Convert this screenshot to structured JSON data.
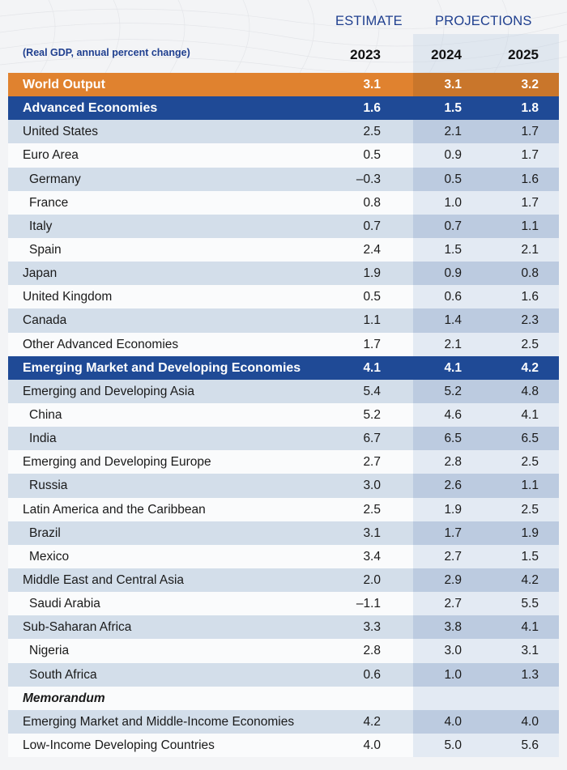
{
  "header": {
    "estimate_label": "ESTIMATE",
    "projections_label": "PROJECTIONS",
    "subtitle": "(Real GDP, annual percent change)",
    "years": [
      "2023",
      "2024",
      "2025"
    ]
  },
  "colors": {
    "world": "#e0822f",
    "group": "#1f4a96",
    "shade": "#d3deea",
    "text_accent": "#1f3f8f"
  },
  "rows": [
    {
      "label": "World Output",
      "values": [
        "3.1",
        "3.1",
        "3.2"
      ],
      "type": "world"
    },
    {
      "label": "Advanced Economies",
      "values": [
        "1.6",
        "1.5",
        "1.8"
      ],
      "type": "group"
    },
    {
      "label": "United States",
      "values": [
        "2.5",
        "2.1",
        "1.7"
      ],
      "type": "shade"
    },
    {
      "label": "Euro Area",
      "values": [
        "0.5",
        "0.9",
        "1.7"
      ],
      "type": "white"
    },
    {
      "label": "Germany",
      "values": [
        "–0.3",
        "0.5",
        "1.6"
      ],
      "type": "shade sub"
    },
    {
      "label": "France",
      "values": [
        "0.8",
        "1.0",
        "1.7"
      ],
      "type": "white sub"
    },
    {
      "label": "Italy",
      "values": [
        "0.7",
        "0.7",
        "1.1"
      ],
      "type": "shade sub"
    },
    {
      "label": "Spain",
      "values": [
        "2.4",
        "1.5",
        "2.1"
      ],
      "type": "white sub"
    },
    {
      "label": "Japan",
      "values": [
        "1.9",
        "0.9",
        "0.8"
      ],
      "type": "shade"
    },
    {
      "label": "United Kingdom",
      "values": [
        "0.5",
        "0.6",
        "1.6"
      ],
      "type": "white"
    },
    {
      "label": "Canada",
      "values": [
        "1.1",
        "1.4",
        "2.3"
      ],
      "type": "shade"
    },
    {
      "label": "Other Advanced Economies",
      "values": [
        "1.7",
        "2.1",
        "2.5"
      ],
      "type": "white"
    },
    {
      "label": "Emerging Market and Developing Economies",
      "values": [
        "4.1",
        "4.1",
        "4.2"
      ],
      "type": "group"
    },
    {
      "label": "Emerging and Developing Asia",
      "values": [
        "5.4",
        "5.2",
        "4.8"
      ],
      "type": "shade"
    },
    {
      "label": "China",
      "values": [
        "5.2",
        "4.6",
        "4.1"
      ],
      "type": "white sub"
    },
    {
      "label": "India",
      "values": [
        "6.7",
        "6.5",
        "6.5"
      ],
      "type": "shade sub"
    },
    {
      "label": "Emerging and Developing Europe",
      "values": [
        "2.7",
        "2.8",
        "2.5"
      ],
      "type": "white"
    },
    {
      "label": "Russia",
      "values": [
        "3.0",
        "2.6",
        "1.1"
      ],
      "type": "shade sub"
    },
    {
      "label": "Latin America and the Caribbean",
      "values": [
        "2.5",
        "1.9",
        "2.5"
      ],
      "type": "white"
    },
    {
      "label": "Brazil",
      "values": [
        "3.1",
        "1.7",
        "1.9"
      ],
      "type": "shade sub"
    },
    {
      "label": "Mexico",
      "values": [
        "3.4",
        "2.7",
        "1.5"
      ],
      "type": "white sub"
    },
    {
      "label": "Middle East and Central Asia",
      "values": [
        "2.0",
        "2.9",
        "4.2"
      ],
      "type": "shade"
    },
    {
      "label": "Saudi Arabia",
      "values": [
        "–1.1",
        "2.7",
        "5.5"
      ],
      "type": "white sub"
    },
    {
      "label": "Sub-Saharan Africa",
      "values": [
        "3.3",
        "3.8",
        "4.1"
      ],
      "type": "shade"
    },
    {
      "label": "Nigeria",
      "values": [
        "2.8",
        "3.0",
        "3.1"
      ],
      "type": "white sub"
    },
    {
      "label": "South Africa",
      "values": [
        "0.6",
        "1.0",
        "1.3"
      ],
      "type": "shade sub"
    },
    {
      "label": "Memorandum",
      "values": [
        "",
        "",
        ""
      ],
      "type": "white memo"
    },
    {
      "label": "Emerging Market and Middle-Income Economies",
      "values": [
        "4.2",
        "4.0",
        "4.0"
      ],
      "type": "shade"
    },
    {
      "label": "Low-Income Developing Countries",
      "values": [
        "4.0",
        "5.0",
        "5.6"
      ],
      "type": "white"
    }
  ]
}
